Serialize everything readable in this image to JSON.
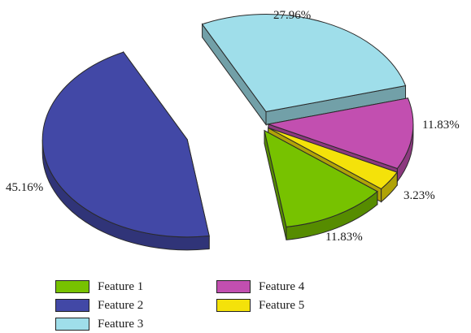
{
  "chart_data": {
    "type": "pie",
    "style": "3d-exploded",
    "title": "",
    "slices": [
      {
        "name": "Feature 1",
        "value": 11.83,
        "label": "11.83%",
        "color": "#77c200"
      },
      {
        "name": "Feature 2",
        "value": 45.16,
        "label": "45.16%",
        "color": "#4248a6"
      },
      {
        "name": "Feature 3",
        "value": 27.96,
        "label": "27.96%",
        "color": "#9fdeea"
      },
      {
        "name": "Feature 4",
        "value": 11.83,
        "label": "11.83%",
        "color": "#c24fb0"
      },
      {
        "name": "Feature 5",
        "value": 3.23,
        "label": "3.23%",
        "color": "#f4e20a"
      }
    ],
    "legend": {
      "placement": "bottom",
      "items": [
        "Feature 1",
        "Feature 2",
        "Feature 3",
        "Feature 4",
        "Feature 5"
      ]
    }
  }
}
